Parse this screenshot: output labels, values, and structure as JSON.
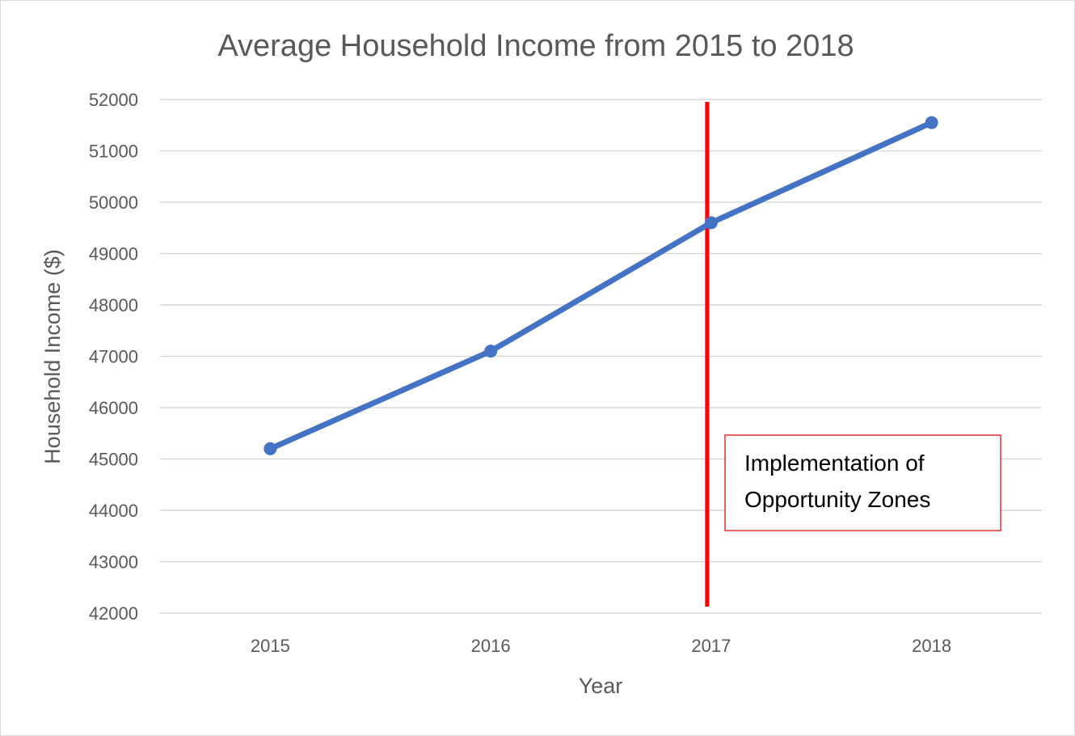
{
  "chart_data": {
    "type": "line",
    "title": "Average Household Income from 2015 to 2018",
    "xlabel": "Year",
    "ylabel": "Household Income ($)",
    "categories": [
      "2015",
      "2016",
      "2017",
      "2018"
    ],
    "series": [
      {
        "values": [
          45200,
          47100,
          49600,
          51550
        ],
        "color": "#4472c4"
      }
    ],
    "ylim": [
      42000,
      52000
    ],
    "yticks": [
      42000,
      43000,
      44000,
      45000,
      46000,
      47000,
      48000,
      49000,
      50000,
      51000,
      52000
    ],
    "grid": true,
    "legend": "none",
    "annotation": {
      "marker_x": "2017",
      "marker_color": "#ff0000",
      "label_lines": [
        "Implementation of",
        "Opportunity Zones"
      ],
      "label_border_color": "#e03030"
    }
  }
}
